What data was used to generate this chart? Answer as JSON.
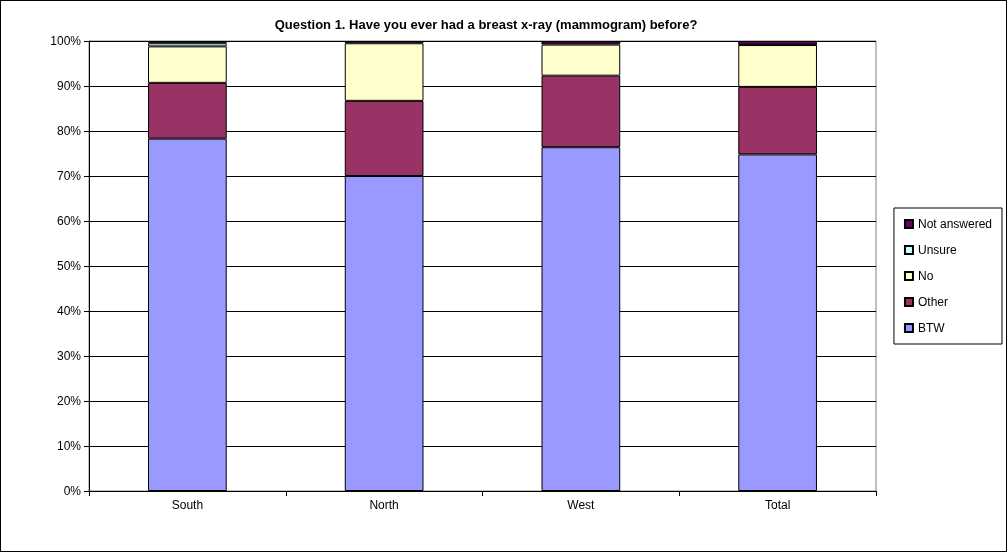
{
  "chart_data": {
    "type": "bar",
    "title": "Question 1. Have you ever had a breast x-ray (mammogram) before?",
    "categories": [
      "South",
      "North",
      "West",
      "Total"
    ],
    "stacked": true,
    "series": [
      {
        "name": "BTW",
        "color": "#9999ff",
        "values": [
          78.3,
          70.0,
          76.4,
          74.8
        ]
      },
      {
        "name": "Other",
        "color": "#993366",
        "values": [
          12.4,
          16.7,
          15.9,
          15.0
        ]
      },
      {
        "name": "No",
        "color": "#ffffcc",
        "values": [
          8.1,
          12.8,
          6.9,
          9.3
        ]
      },
      {
        "name": "Unsure",
        "color": "#ccffff",
        "values": [
          0.7,
          null,
          null,
          0.1
        ]
      },
      {
        "name": "Not answered",
        "color": "#660066",
        "values": [
          0.5,
          0.5,
          0.7,
          0.8
        ]
      }
    ],
    "ylim": [
      0,
      100
    ],
    "yticks": [
      {
        "value": 0,
        "label": "0%"
      },
      {
        "value": 10,
        "label": "10%"
      },
      {
        "value": 20,
        "label": "20%"
      },
      {
        "value": 30,
        "label": "30%"
      },
      {
        "value": 40,
        "label": "40%"
      },
      {
        "value": 50,
        "label": "50%"
      },
      {
        "value": 60,
        "label": "60%"
      },
      {
        "value": 70,
        "label": "70%"
      },
      {
        "value": 80,
        "label": "80%"
      },
      {
        "value": 90,
        "label": "90%"
      },
      {
        "value": 100,
        "label": "100%"
      }
    ],
    "grid": "y",
    "legend": "right"
  }
}
